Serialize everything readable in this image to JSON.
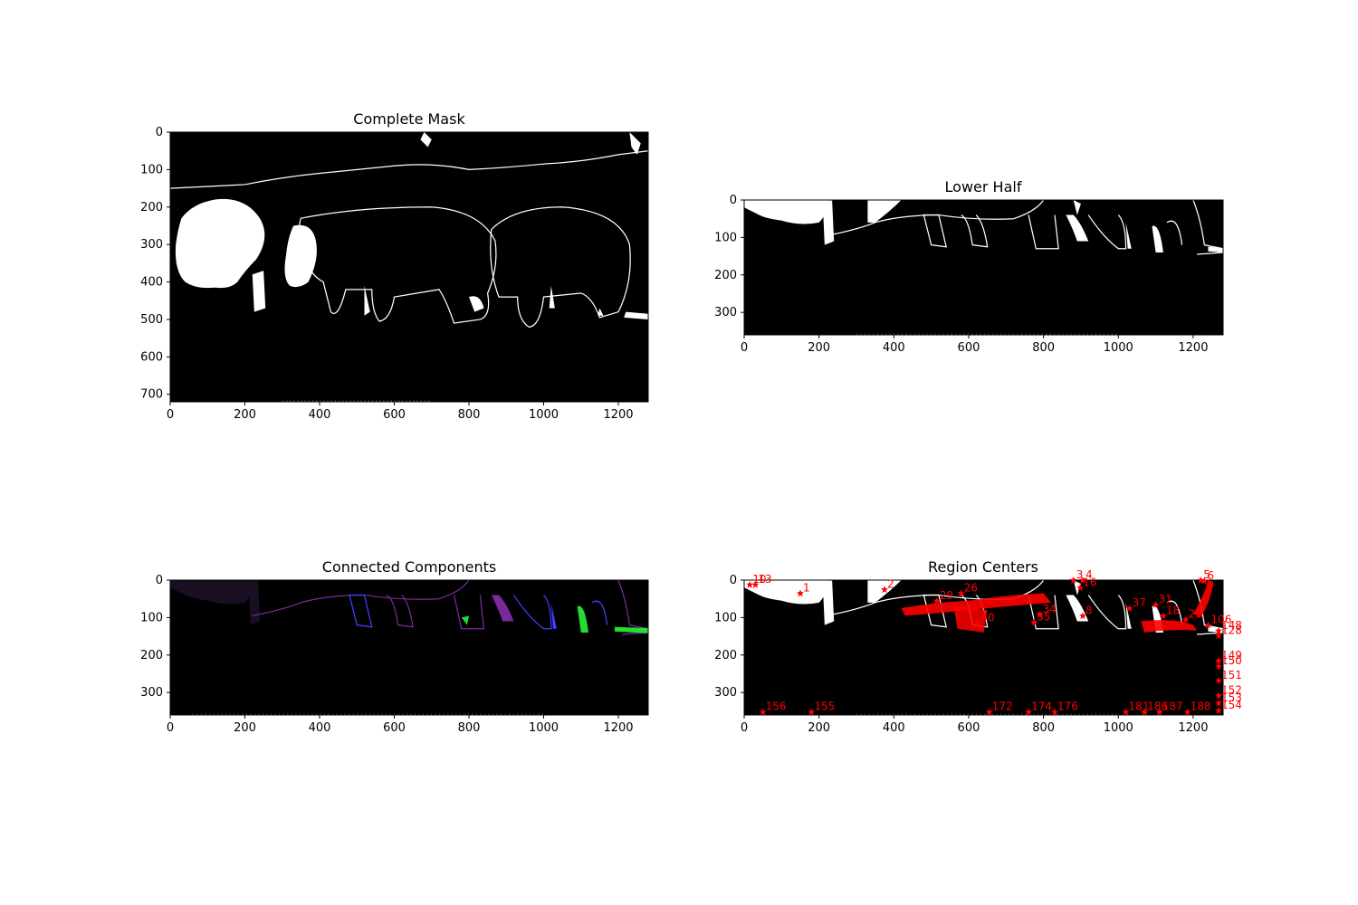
{
  "colors": {
    "background": "#000000",
    "mask": "#ffffff",
    "center_marker": "#ff0000",
    "component_purple": "#7b2a9c",
    "component_blue": "#4040ff",
    "component_green": "#22dd33",
    "component_cyan": "#22b5c8"
  },
  "chart_data": [
    {
      "type": "image",
      "title": "Complete Mask",
      "xlim": [
        0,
        1280
      ],
      "ylim": [
        720,
        0
      ],
      "xticks": [
        "0",
        "200",
        "400",
        "600",
        "800",
        "1000",
        "1200"
      ],
      "yticks": [
        "0",
        "100",
        "200",
        "300",
        "400",
        "500",
        "600",
        "700"
      ],
      "grid": false
    },
    {
      "type": "image",
      "title": "Lower Half",
      "xlim": [
        0,
        1280
      ],
      "ylim": [
        360,
        0
      ],
      "xticks": [
        "0",
        "200",
        "400",
        "600",
        "800",
        "1000",
        "1200"
      ],
      "yticks": [
        "0",
        "100",
        "200",
        "300"
      ],
      "grid": false
    },
    {
      "type": "image",
      "title": "Connected Components",
      "xlim": [
        0,
        1280
      ],
      "ylim": [
        360,
        0
      ],
      "xticks": [
        "0",
        "200",
        "400",
        "600",
        "800",
        "1000",
        "1200"
      ],
      "yticks": [
        "0",
        "100",
        "200",
        "300"
      ],
      "grid": false
    },
    {
      "type": "scatter",
      "title": "Region Centers",
      "xlim": [
        0,
        1280
      ],
      "ylim": [
        360,
        0
      ],
      "xticks": [
        "0",
        "200",
        "400",
        "600",
        "800",
        "1000",
        "1200"
      ],
      "yticks": [
        "0",
        "100",
        "200",
        "300"
      ],
      "grid": false,
      "points": [
        {
          "label": "1",
          "x": 150,
          "y": 35
        },
        {
          "label": "2",
          "x": 375,
          "y": 25
        },
        {
          "label": "3",
          "x": 880,
          "y": 0
        },
        {
          "label": "4",
          "x": 905,
          "y": 0
        },
        {
          "label": "5",
          "x": 1220,
          "y": 0
        },
        {
          "label": "6",
          "x": 1230,
          "y": 2
        },
        {
          "label": "8",
          "x": 905,
          "y": 95
        },
        {
          "label": "10",
          "x": 15,
          "y": 12
        },
        {
          "label": "13",
          "x": 30,
          "y": 12
        },
        {
          "label": "16",
          "x": 898,
          "y": 20
        },
        {
          "label": "18",
          "x": 1120,
          "y": 95
        },
        {
          "label": "23",
          "x": 1180,
          "y": 105
        },
        {
          "label": "26",
          "x": 580,
          "y": 35
        },
        {
          "label": "29",
          "x": 515,
          "y": 55
        },
        {
          "label": "31",
          "x": 1100,
          "y": 65
        },
        {
          "label": "34",
          "x": 790,
          "y": 92
        },
        {
          "label": "35",
          "x": 775,
          "y": 112
        },
        {
          "label": "37",
          "x": 1030,
          "y": 75
        },
        {
          "label": "40",
          "x": 625,
          "y": 115
        },
        {
          "label": "106",
          "x": 1240,
          "y": 120
        },
        {
          "label": "128",
          "x": 1268,
          "y": 148
        },
        {
          "label": "148",
          "x": 1268,
          "y": 135
        },
        {
          "label": "149",
          "x": 1268,
          "y": 215
        },
        {
          "label": "150",
          "x": 1268,
          "y": 230
        },
        {
          "label": "151",
          "x": 1268,
          "y": 268
        },
        {
          "label": "152",
          "x": 1268,
          "y": 308
        },
        {
          "label": "153",
          "x": 1268,
          "y": 328
        },
        {
          "label": "154",
          "x": 1268,
          "y": 348
        },
        {
          "label": "156",
          "x": 50,
          "y": 352
        },
        {
          "label": "155",
          "x": 180,
          "y": 352
        },
        {
          "label": "172",
          "x": 655,
          "y": 352
        },
        {
          "label": "174",
          "x": 760,
          "y": 352
        },
        {
          "label": "176",
          "x": 830,
          "y": 352
        },
        {
          "label": "181",
          "x": 1020,
          "y": 352
        },
        {
          "label": "186",
          "x": 1070,
          "y": 352
        },
        {
          "label": "187",
          "x": 1110,
          "y": 352
        },
        {
          "label": "188",
          "x": 1185,
          "y": 352
        }
      ]
    }
  ]
}
